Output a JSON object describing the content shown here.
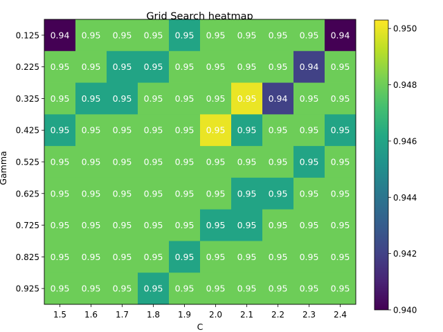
{
  "chart_data": {
    "type": "heatmap",
    "title": "Grid Search heatmap",
    "xlabel": "C",
    "ylabel": "Gamma",
    "x_categories": [
      "1.5",
      "1.6",
      "1.7",
      "1.8",
      "1.9",
      "2.0",
      "2.1",
      "2.2",
      "2.3",
      "2.4"
    ],
    "y_categories": [
      "0.125",
      "0.225",
      "0.325",
      "0.425",
      "0.525",
      "0.625",
      "0.725",
      "0.825",
      "0.925"
    ],
    "values": [
      [
        0.94,
        0.948,
        0.948,
        0.948,
        0.946,
        0.948,
        0.948,
        0.948,
        0.948,
        0.94
      ],
      [
        0.948,
        0.948,
        0.946,
        0.946,
        0.948,
        0.948,
        0.948,
        0.948,
        0.942,
        0.948
      ],
      [
        0.948,
        0.946,
        0.946,
        0.948,
        0.948,
        0.948,
        0.95,
        0.942,
        0.948,
        0.948
      ],
      [
        0.946,
        0.948,
        0.948,
        0.948,
        0.948,
        0.95,
        0.946,
        0.948,
        0.948,
        0.946
      ],
      [
        0.948,
        0.948,
        0.948,
        0.948,
        0.948,
        0.948,
        0.948,
        0.948,
        0.946,
        0.948
      ],
      [
        0.948,
        0.948,
        0.948,
        0.948,
        0.948,
        0.948,
        0.946,
        0.946,
        0.948,
        0.948
      ],
      [
        0.948,
        0.948,
        0.948,
        0.948,
        0.948,
        0.946,
        0.946,
        0.948,
        0.948,
        0.948
      ],
      [
        0.948,
        0.948,
        0.948,
        0.948,
        0.946,
        0.948,
        0.948,
        0.948,
        0.948,
        0.948
      ],
      [
        0.948,
        0.948,
        0.948,
        0.946,
        0.948,
        0.948,
        0.948,
        0.948,
        0.948,
        0.948
      ]
    ],
    "cell_labels": [
      [
        "0.94",
        "0.95",
        "0.95",
        "0.95",
        "0.95",
        "0.95",
        "0.95",
        "0.95",
        "0.95",
        "0.94"
      ],
      [
        "0.95",
        "0.95",
        "0.95",
        "0.95",
        "0.95",
        "0.95",
        "0.95",
        "0.95",
        "0.94",
        "0.95"
      ],
      [
        "0.95",
        "0.95",
        "0.95",
        "0.95",
        "0.95",
        "0.95",
        "0.95",
        "0.94",
        "0.95",
        "0.95"
      ],
      [
        "0.95",
        "0.95",
        "0.95",
        "0.95",
        "0.95",
        "0.95",
        "0.95",
        "0.95",
        "0.95",
        "0.95"
      ],
      [
        "0.95",
        "0.95",
        "0.95",
        "0.95",
        "0.95",
        "0.95",
        "0.95",
        "0.95",
        "0.95",
        "0.95"
      ],
      [
        "0.95",
        "0.95",
        "0.95",
        "0.95",
        "0.95",
        "0.95",
        "0.95",
        "0.95",
        "0.95",
        "0.95"
      ],
      [
        "0.95",
        "0.95",
        "0.95",
        "0.95",
        "0.95",
        "0.95",
        "0.95",
        "0.95",
        "0.95",
        "0.95"
      ],
      [
        "0.95",
        "0.95",
        "0.95",
        "0.95",
        "0.95",
        "0.95",
        "0.95",
        "0.95",
        "0.95",
        "0.95"
      ],
      [
        "0.95",
        "0.95",
        "0.95",
        "0.95",
        "0.95",
        "0.95",
        "0.95",
        "0.95",
        "0.95",
        "0.95"
      ]
    ],
    "colormap": "viridis",
    "vmin": 0.94,
    "vmax": 0.9503,
    "colorbar_ticks": [
      0.94,
      0.942,
      0.944,
      0.946,
      0.948,
      0.95
    ],
    "colorbar_tick_labels": [
      "0.940",
      "0.942",
      "0.944",
      "0.946",
      "0.948",
      "0.950"
    ],
    "grid": false,
    "legend": "colorbar-right"
  }
}
